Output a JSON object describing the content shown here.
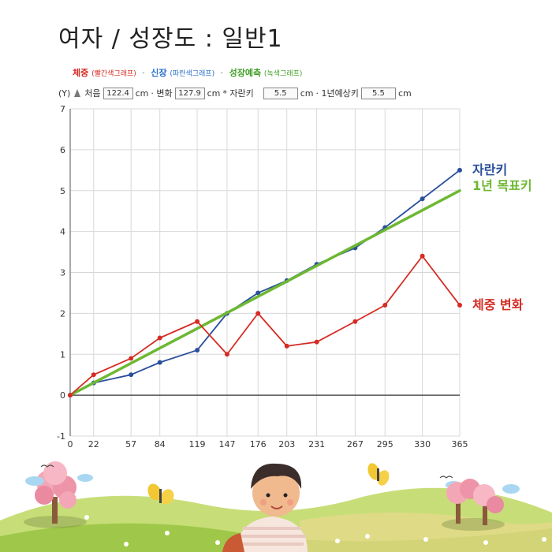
{
  "title": "여자 / 성장도 : 일반1",
  "legend": {
    "weight_label": "체중",
    "weight_sub": "(빨간색그래프)",
    "height_label": "신장",
    "height_sub": "(파란색그래프)",
    "pred_label": "성장예측",
    "pred_sub": "(녹색그래프)",
    "sep": "·"
  },
  "inputs": {
    "y_label": "(Y)",
    "start_label": "처음",
    "start_value": "122.4",
    "unit": "cm",
    "change_label": "· 변화",
    "change_value": "127.9",
    "growth_label": "* 자란키",
    "growth_value": "5.5",
    "expected_label": "· 1년예상키",
    "expected_value": "5.5"
  },
  "colors": {
    "height": "#2a4f9c",
    "weight": "#d52b22",
    "prediction": "#6db832",
    "grid": "#d8d8d8"
  },
  "chart_data": {
    "type": "line",
    "x": [
      0,
      22,
      57,
      84,
      119,
      147,
      176,
      203,
      231,
      267,
      295,
      330,
      365
    ],
    "xlim": [
      0,
      365
    ],
    "ylim": [
      -1,
      7
    ],
    "yticks": [
      -1,
      0,
      1,
      2,
      3,
      4,
      5,
      6,
      7
    ],
    "grid": true,
    "series": [
      {
        "name": "자란키",
        "color": "#2a4f9c",
        "values": [
          0,
          0.3,
          0.5,
          0.8,
          1.1,
          2.0,
          2.5,
          2.8,
          3.2,
          3.6,
          4.1,
          4.8,
          5.5
        ]
      },
      {
        "name": "1년 목표키",
        "color": "#6db832",
        "line_points": [
          [
            0,
            0
          ],
          [
            365,
            5.0
          ]
        ]
      },
      {
        "name": "체중 변화",
        "color": "#d52b22",
        "values": [
          0,
          0.5,
          0.9,
          1.4,
          1.8,
          1.0,
          2.0,
          1.2,
          1.3,
          1.8,
          2.2,
          3.4,
          2.2
        ]
      }
    ]
  },
  "scene": {
    "icons": [
      "tree-icon",
      "butterfly-icon",
      "child-icon",
      "cloud-icon",
      "bird-icon",
      "flower-icon"
    ]
  }
}
